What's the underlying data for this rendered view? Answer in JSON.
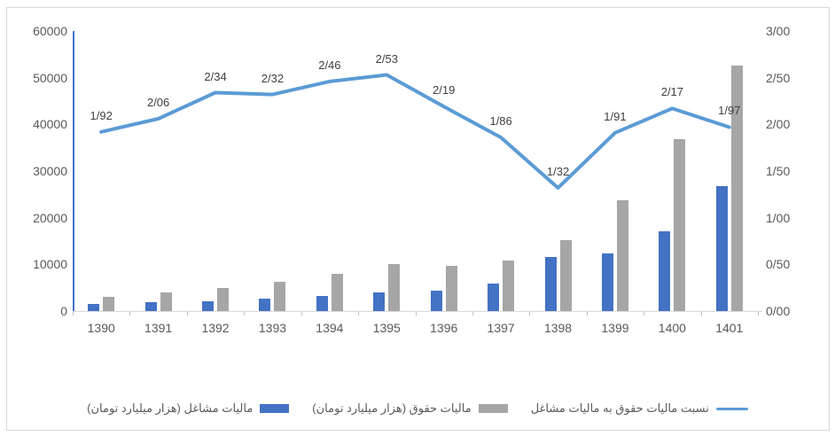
{
  "chart_data": {
    "type": "bar",
    "subtype": "combo-bar-line",
    "title": "",
    "categories": [
      "1390",
      "1391",
      "1392",
      "1393",
      "1394",
      "1395",
      "1396",
      "1397",
      "1398",
      "1399",
      "1400",
      "1401"
    ],
    "series": [
      {
        "name": "مالیات مشاغل (هزار میلیارد تومان)",
        "type": "bar",
        "color": "#4472c4",
        "axis": "left",
        "values": [
          1600,
          1900,
          2100,
          2700,
          3200,
          4000,
          4400,
          5800,
          11500,
          12400,
          17000,
          26700
        ]
      },
      {
        "name": "مالیات حقوق (هزار میلیارد تومان)",
        "type": "bar",
        "color": "#a6a6a6",
        "axis": "left",
        "values": [
          3100,
          3900,
          4900,
          6300,
          7900,
          10100,
          9700,
          10800,
          15200,
          23700,
          36900,
          52600
        ]
      },
      {
        "name": "نسبت مالیات حقوق به مالیات مشاغل",
        "type": "line",
        "color": "#5b9bd5",
        "axis": "right",
        "values": [
          1.92,
          2.06,
          2.34,
          2.32,
          2.46,
          2.53,
          2.19,
          1.86,
          1.32,
          1.91,
          2.17,
          1.97
        ],
        "labels": [
          "1/92",
          "2/06",
          "2/34",
          "2/32",
          "2/46",
          "2/53",
          "2/19",
          "1/86",
          "1/32",
          "1/91",
          "2/17",
          "1/97"
        ]
      }
    ],
    "left_axis": {
      "min": 0,
      "max": 60000,
      "step": 10000,
      "ticks": [
        "0",
        "10000",
        "20000",
        "30000",
        "40000",
        "50000",
        "60000"
      ]
    },
    "right_axis": {
      "min": 0,
      "max": 3,
      "step": 0.5,
      "ticks": [
        "0/00",
        "0/50",
        "1/00",
        "1/50",
        "2/00",
        "2/50",
        "3/00"
      ]
    },
    "grid": false,
    "legend_position": "bottom",
    "xlabel": "",
    "ylabel": ""
  },
  "colors": {
    "y_axis_line": "#4472c4",
    "x_axis_line": "#d9d9d9",
    "tick": "#bfbfbf",
    "axis_text": "#595959",
    "data_label_text": "#404040",
    "frame_border": "#d9d9d9",
    "background": "#ffffff"
  }
}
